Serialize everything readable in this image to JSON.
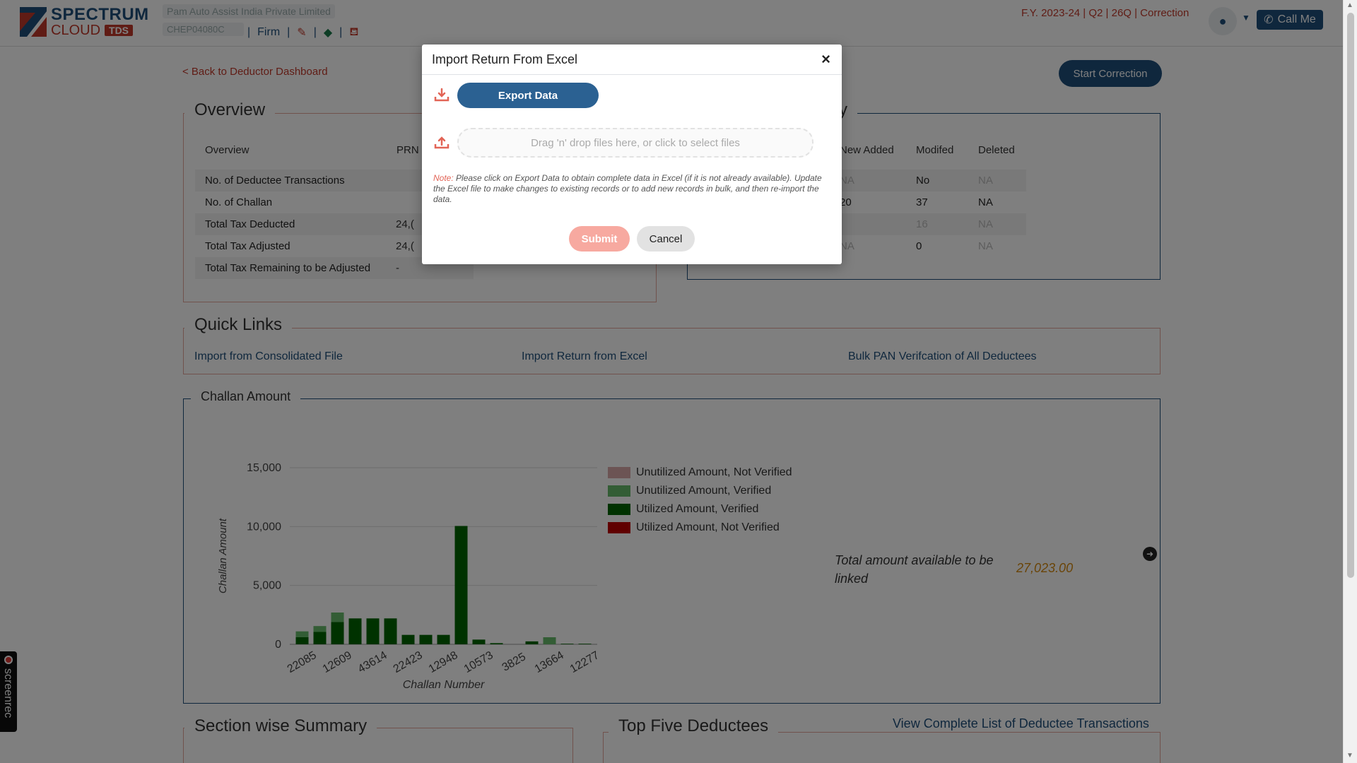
{
  "header": {
    "logo_line1": "SPECTRUM",
    "logo_line2": "CLOUD",
    "logo_tds": "TDS",
    "firm_name": "Pam Auto Assist India Private Limited",
    "firm_code": "CHEP04080C",
    "nav_firm": "Firm",
    "fy_info": "F.Y. 2023-24  | Q2  | 26Q | Correction",
    "call_label": "Call Me"
  },
  "page": {
    "back_link": "< Back to Deductor Dashboard",
    "start_correction": "Start Correction"
  },
  "overview": {
    "title": "Overview",
    "col1": "Overview",
    "col2": "PRN N",
    "rows": [
      {
        "label": "No. of Deductee Transactions",
        "value": ""
      },
      {
        "label": "No. of Challan",
        "value": ""
      },
      {
        "label": "Total Tax Deducted",
        "value": "24,("
      },
      {
        "label": "Total Tax Adjusted",
        "value": "24,("
      },
      {
        "label": "Total Tax Remaining to be Adjusted",
        "value": "-"
      }
    ]
  },
  "summary": {
    "title": "ry",
    "headers": [
      "New Added",
      "Modifed",
      "Deleted"
    ],
    "rows": [
      [
        "NA",
        "No",
        "NA"
      ],
      [
        "20",
        "37",
        "NA"
      ],
      [
        "",
        "16",
        "NA"
      ],
      [
        "NA",
        "0",
        "NA"
      ]
    ]
  },
  "quick_links": {
    "title": "Quick Links",
    "links": [
      "Import from Consolidated File",
      "Import Return from Excel",
      "Bulk PAN Verifcation of All Deductees"
    ]
  },
  "challan_section": {
    "title": "Challan Amount",
    "total_label": "Total amount available to be linked",
    "total_value": "27,023.00"
  },
  "chart_data": {
    "type": "bar",
    "stacked": true,
    "xlabel": "Challan Number",
    "ylabel": "Challan Amount",
    "ylim": [
      0,
      15000
    ],
    "yticks": [
      0,
      5000,
      10000,
      15000
    ],
    "ytick_labels": [
      "0",
      "5,000",
      "10,000",
      "15,000"
    ],
    "xtick_labels": [
      "22085",
      "12609",
      "43614",
      "22423",
      "12948",
      "10573",
      "3825",
      "13664",
      "12277"
    ],
    "legend_position": "right",
    "series": [
      {
        "name": "Utilized Amount, Verified",
        "color": "#006400",
        "values": [
          600,
          1050,
          1900,
          2200,
          2200,
          2200,
          800,
          800,
          800,
          10050,
          400,
          100,
          0,
          250,
          0,
          50,
          50
        ]
      },
      {
        "name": "Unutilized Amount, Verified",
        "color": "#66bb6a",
        "values": [
          500,
          500,
          800,
          0,
          0,
          0,
          0,
          0,
          0,
          0,
          0,
          0,
          0,
          0,
          600,
          0,
          0
        ]
      },
      {
        "name": "Unutilized Amount, Not Verified",
        "color": "#d9a8a8",
        "values": [
          0,
          0,
          0,
          0,
          0,
          0,
          0,
          0,
          0,
          0,
          0,
          0,
          0,
          0,
          0,
          0,
          0
        ]
      },
      {
        "name": "Utilized Amount, Not Verified",
        "color": "#c00000",
        "values": [
          0,
          0,
          0,
          0,
          0,
          0,
          0,
          0,
          0,
          0,
          0,
          0,
          0,
          0,
          0,
          0,
          0
        ]
      }
    ]
  },
  "bottom": {
    "section_summary": "Section wise Summary",
    "top_five": "Top Five Deductees",
    "view_complete": "View Complete List of Deductee Transactions"
  },
  "screenrec": "screenrec",
  "modal": {
    "title": "Import Return From Excel",
    "close": "×",
    "export_label": "Export Data",
    "dropzone_placeholder": "Drag 'n' drop files here, or click to select files",
    "note_label": "Note:",
    "note_text": "Please click on Export Data to obtain complete data in Excel (if it is not already available). Update the Excel file to make changes to existing records or to add new records in bulk, and then re-import the data.",
    "submit_label": "Submit",
    "cancel_label": "Cancel"
  }
}
